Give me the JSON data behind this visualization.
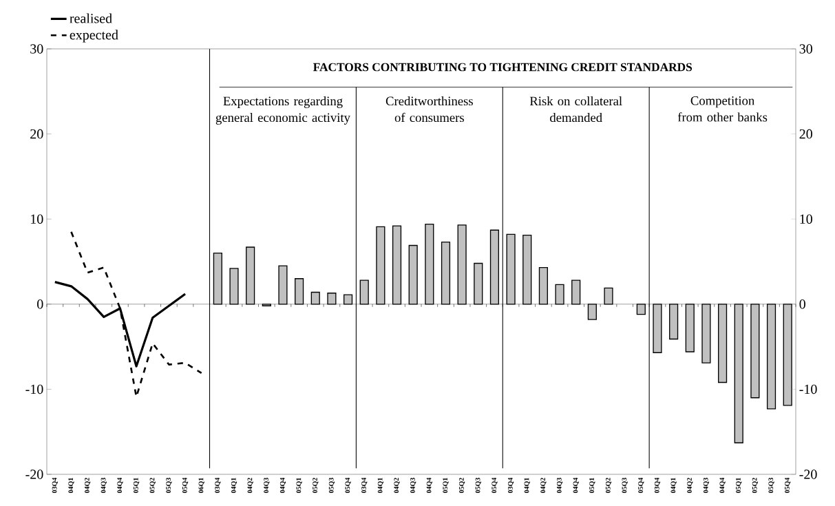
{
  "chart_data": {
    "type": "bar",
    "title": "FACTORS CONTRIBUTING TO TIGHTENING CREDIT STANDARDS",
    "categories": [
      "03Q4",
      "04Q1",
      "04Q2",
      "04Q3",
      "04Q4",
      "05Q1",
      "05Q2",
      "05Q3",
      "05Q4",
      "06Q1",
      "03Q4",
      "04Q1",
      "04Q2",
      "04Q3",
      "04Q4",
      "05Q1",
      "05Q2",
      "05Q3",
      "05Q4",
      "03Q4",
      "04Q1",
      "04Q2",
      "04Q3",
      "04Q4",
      "05Q1",
      "05Q2",
      "05Q3",
      "05Q4",
      "03Q4",
      "04Q1",
      "04Q2",
      "04Q3",
      "04Q4",
      "05Q1",
      "05Q2",
      "05Q3",
      "05Q4",
      "03Q4",
      "04Q1",
      "04Q2",
      "04Q3",
      "04Q4",
      "05Q1",
      "05Q2",
      "05Q3",
      "05Q4"
    ],
    "series": [
      {
        "color": "#c0c0c0",
        "values": [
          null,
          null,
          null,
          null,
          null,
          null,
          null,
          null,
          null,
          null,
          6.0,
          4.2,
          6.7,
          -0.2,
          4.5,
          3.0,
          1.4,
          1.3,
          1.1,
          2.8,
          9.1,
          9.2,
          6.9,
          9.4,
          7.3,
          9.3,
          4.8,
          8.7,
          8.2,
          8.1,
          4.3,
          2.3,
          2.8,
          -1.8,
          1.9,
          null,
          -1.2,
          -5.7,
          -4.1,
          -5.6,
          -6.9,
          -9.2,
          -16.3,
          -11.0,
          -12.3,
          -11.9
        ]
      },
      {
        "type": "line",
        "name": "realised",
        "color": "#000000",
        "line_style": "solid",
        "values": [
          2.6,
          2.1,
          0.6,
          -1.5,
          -0.5,
          -7.3,
          -1.6,
          -0.2,
          1.2,
          null,
          null,
          null,
          null,
          null,
          null,
          null,
          null,
          null,
          null,
          null,
          null,
          null,
          null,
          null,
          null,
          null,
          null,
          null,
          null,
          null,
          null,
          null,
          null,
          null,
          null,
          null,
          null,
          null,
          null,
          null,
          null,
          null,
          null,
          null,
          null,
          null
        ]
      },
      {
        "type": "line",
        "name": "expected",
        "color": "#000000",
        "line_style": "dashed",
        "values": [
          null,
          8.5,
          3.7,
          4.3,
          -0.5,
          -10.9,
          -4.6,
          -7.1,
          -6.9,
          -8.1,
          null,
          null,
          null,
          null,
          null,
          null,
          null,
          null,
          null,
          null,
          null,
          null,
          null,
          null,
          null,
          null,
          null,
          null,
          null,
          null,
          null,
          null,
          null,
          null,
          null,
          null,
          null,
          null,
          null,
          null,
          null,
          null,
          null,
          null,
          null,
          null
        ]
      }
    ],
    "annotations": [
      "Expectations regarding general economic activity",
      "Creditworthiness of consumers",
      "Risk on collateral demanded",
      "Competition from other banks"
    ],
    "ylim": [
      -20,
      30
    ],
    "yticks": [
      -20,
      -10,
      0,
      10,
      20,
      30
    ],
    "y2lim": [
      -20,
      30
    ],
    "y2ticks": [
      -20,
      -10,
      0,
      10,
      20,
      30
    ],
    "grid": false,
    "legend": "top left"
  }
}
